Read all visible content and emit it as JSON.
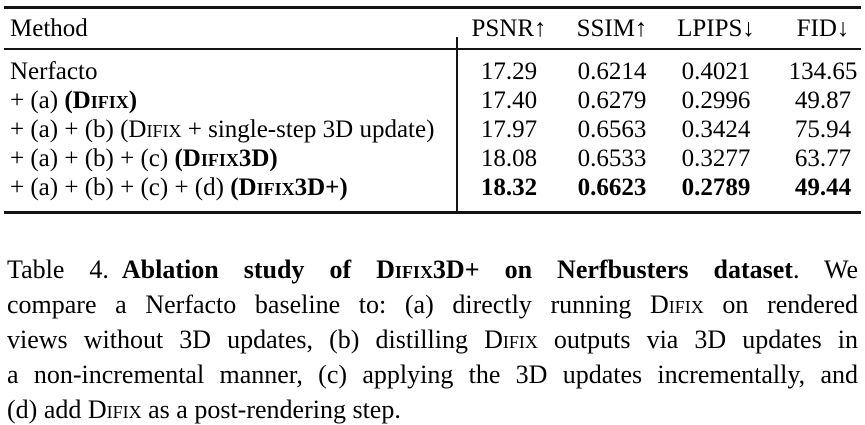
{
  "colors": {
    "text": "#000000",
    "rule": "#141414",
    "background": "#ffffff"
  },
  "table": {
    "header": {
      "method": "Method",
      "metrics": [
        "PSNR↑",
        "SSIM↑",
        "LPIPS↓",
        "FID↓"
      ]
    },
    "rows": [
      {
        "method": [
          {
            "t": "Nerfacto"
          }
        ],
        "values": [
          "17.29",
          "0.6214",
          "0.4021",
          "134.65"
        ]
      },
      {
        "method": [
          {
            "t": "+ (a) "
          },
          {
            "t": "(Difix)",
            "b": 1,
            "sc": 1
          }
        ],
        "values": [
          "17.40",
          "0.6279",
          "0.2996",
          "49.87"
        ]
      },
      {
        "method": [
          {
            "t": "+ (a) + (b) ("
          },
          {
            "t": "Difix",
            "sc": 1
          },
          {
            "t": " + single-step 3D update)"
          }
        ],
        "values": [
          "17.97",
          "0.6563",
          "0.3424",
          "75.94"
        ]
      },
      {
        "method": [
          {
            "t": "+ (a) + (b) + (c) "
          },
          {
            "t": "(Difix3D)",
            "b": 1,
            "sc": 1
          }
        ],
        "values": [
          "18.08",
          "0.6533",
          "0.3277",
          "63.77"
        ]
      },
      {
        "method": [
          {
            "t": "+ (a) + (b) + (c) + (d) "
          },
          {
            "t": "(Difix3D+)",
            "b": 1,
            "sc": 1
          }
        ],
        "values": [
          "18.32",
          "0.6623",
          "0.2789",
          "49.44"
        ]
      }
    ]
  },
  "caption": {
    "label": "Table 4.",
    "lines": [
      [
        {
          "t": "Table 4."
        },
        {
          "t": " "
        },
        {
          "t": "Ablation study of ",
          "b": 1
        },
        {
          "t": "Difix3D+",
          "b": 1,
          "sc": 1
        },
        {
          "t": " on Nerfbusters dataset",
          "b": 1
        },
        {
          "t": ". "
        },
        {
          "t": "We"
        }
      ],
      [
        {
          "t": "compare a Nerfacto baseline to: (a) directly running "
        },
        {
          "t": "Difix",
          "sc": 1
        },
        {
          "t": " on rendered"
        }
      ],
      [
        {
          "t": "views without 3D updates, (b) distilling "
        },
        {
          "t": "Difix",
          "sc": 1
        },
        {
          "t": " outputs via 3D updates in"
        }
      ],
      [
        {
          "t": "a non-incremental manner, (c) applying the 3D updates incrementally, and"
        }
      ],
      [
        {
          "t": "(d) add "
        },
        {
          "t": "Difix",
          "sc": 1
        },
        {
          "t": " as a post-rendering step."
        }
      ]
    ]
  }
}
